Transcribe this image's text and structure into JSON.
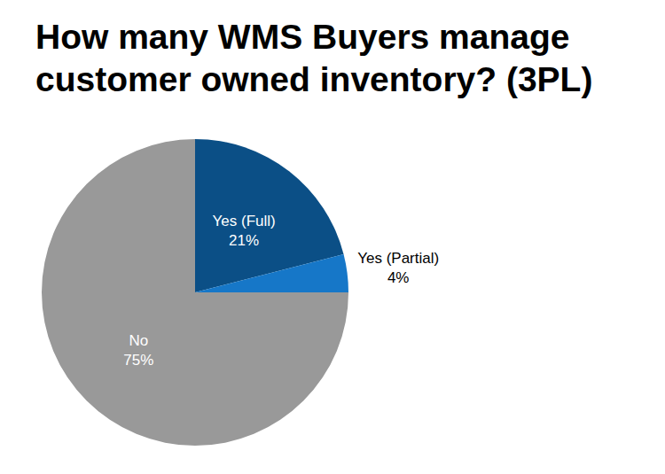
{
  "chart_data": {
    "type": "pie",
    "title": "How many WMS Buyers manage customer owned inventory? (3PL)",
    "categories": [
      "Yes (Full)",
      "Yes (Partial)",
      "No"
    ],
    "values": [
      21,
      4,
      75
    ],
    "value_labels": [
      "21%",
      "4%",
      "75%"
    ],
    "colors": [
      "#0b4f86",
      "#1677c8",
      "#999999"
    ],
    "data_labels": true
  }
}
